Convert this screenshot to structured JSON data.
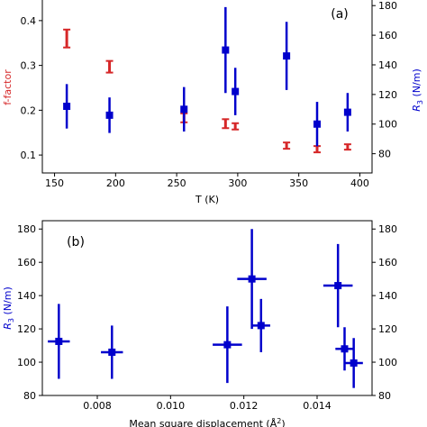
{
  "chart_data": [
    {
      "type": "scatter",
      "panel_label": "(a)",
      "xlabel": "T (K)",
      "ylabel_left": "f-factor",
      "ylabel_right": "R3 (N/m)",
      "xlim": [
        140,
        410
      ],
      "ylim_left": [
        0.06,
        0.45
      ],
      "ylim_right": [
        67,
        185
      ],
      "x_ticks": [
        150,
        200,
        250,
        300,
        350,
        400
      ],
      "y_ticks_left": [
        0.1,
        0.2,
        0.3,
        0.4
      ],
      "y_ticks_right": [
        80,
        100,
        120,
        140,
        160,
        180
      ],
      "colors": {
        "left": "#d62728",
        "right": "#0000cc"
      },
      "series": [
        {
          "axis": "left",
          "marker": "error-bar-only",
          "points": [
            {
              "x": 160,
              "y": 0.36,
              "yerr": 0.02
            },
            {
              "x": 195,
              "y": 0.297,
              "yerr": 0.013
            },
            {
              "x": 256,
              "y": 0.183,
              "yerr": 0.01
            },
            {
              "x": 290,
              "y": 0.17,
              "yerr": 0.01
            },
            {
              "x": 298,
              "y": 0.164,
              "yerr": 0.007
            },
            {
              "x": 340,
              "y": 0.121,
              "yerr": 0.007
            },
            {
              "x": 365,
              "y": 0.113,
              "yerr": 0.007
            },
            {
              "x": 390,
              "y": 0.118,
              "yerr": 0.006
            }
          ]
        },
        {
          "axis": "right",
          "marker": "square",
          "points": [
            {
              "x": 160,
              "y": 112,
              "yerr": 15
            },
            {
              "x": 195,
              "y": 106,
              "yerr": 12
            },
            {
              "x": 256,
              "y": 110,
              "yerr": 15
            },
            {
              "x": 290,
              "y": 150,
              "yerr": 29
            },
            {
              "x": 298,
              "y": 122,
              "yerr": 16
            },
            {
              "x": 340,
              "y": 146,
              "yerr": 23
            },
            {
              "x": 365,
              "y": 100,
              "yerr": 15
            },
            {
              "x": 390,
              "y": 108,
              "yerr": 13
            }
          ]
        }
      ]
    },
    {
      "type": "scatter",
      "panel_label": "(b)",
      "xlabel": "Mean square displacement (Å2)",
      "ylabel_left": "R3 (N/m)",
      "xlim": [
        0.0065,
        0.0155
      ],
      "ylim": [
        80,
        185
      ],
      "x_ticks": [
        0.008,
        0.01,
        0.012,
        0.014
      ],
      "x_tick_labels": [
        "0.008",
        "0.010",
        "0.012",
        "0.014"
      ],
      "y_ticks": [
        80,
        100,
        120,
        140,
        160,
        180
      ],
      "colors": {
        "points": "#0000cc"
      },
      "series": [
        {
          "marker": "square",
          "points": [
            {
              "x": 0.00695,
              "y": 112.5,
              "xerr": 0.0003,
              "yerr": 22.5
            },
            {
              "x": 0.0084,
              "y": 106,
              "xerr": 0.0003,
              "yerr": 16
            },
            {
              "x": 0.01155,
              "y": 110.5,
              "xerr": 0.0004,
              "yerr": 23
            },
            {
              "x": 0.01222,
              "y": 150,
              "xerr": 0.0004,
              "yerr": 30
            },
            {
              "x": 0.01247,
              "y": 122,
              "xerr": 0.00025,
              "yerr": 16
            },
            {
              "x": 0.01457,
              "y": 146,
              "xerr": 0.0004,
              "yerr": 25
            },
            {
              "x": 0.01475,
              "y": 108,
              "xerr": 0.00025,
              "yerr": 13
            },
            {
              "x": 0.015,
              "y": 99.5,
              "xerr": 0.00025,
              "yerr": 15
            }
          ]
        }
      ]
    }
  ]
}
